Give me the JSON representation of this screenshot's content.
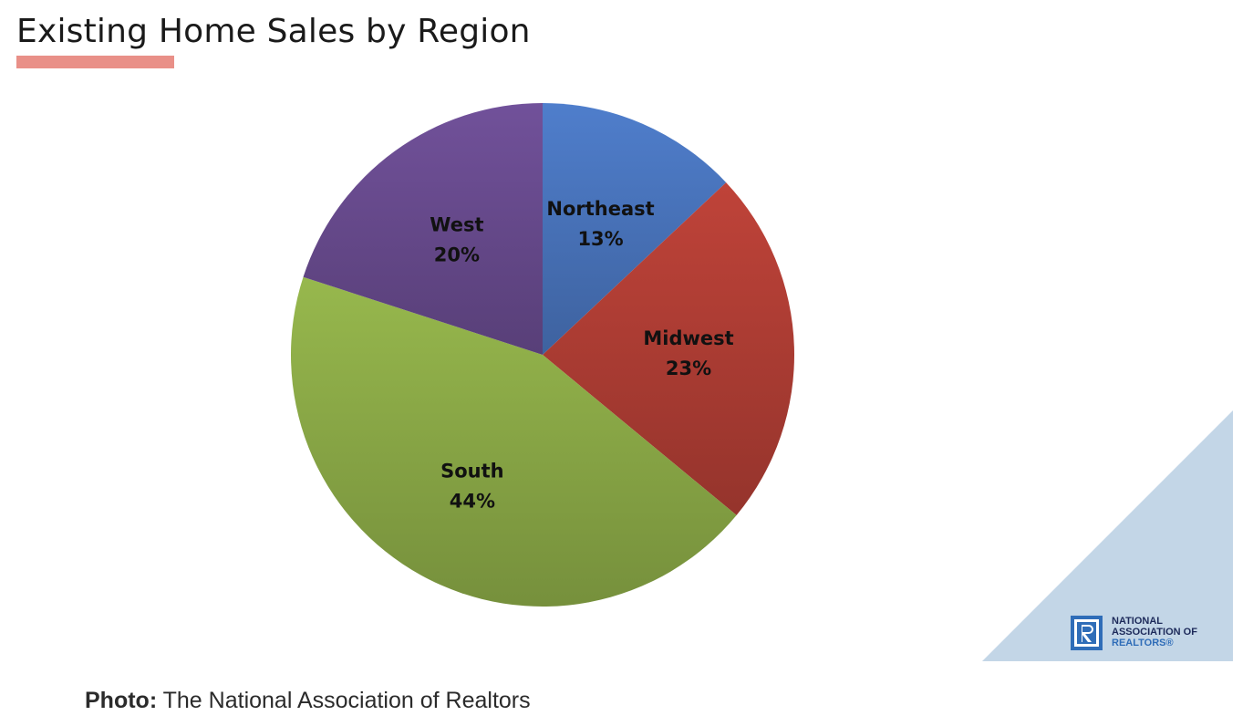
{
  "page": {
    "title": "Existing Home Sales by Region",
    "caption_lead": "Photo:",
    "caption_text": " The National Association of Realtors",
    "logo": {
      "line1": "NATIONAL",
      "line2": "ASSOCIATION OF",
      "line3": "REALTORS®",
      "icon": "realtor-r-icon"
    },
    "colors": {
      "accent_underline": "#e99088",
      "corner_triangle": "#c3d6e7"
    }
  },
  "chart_data": {
    "type": "pie",
    "title": "Existing Home Sales by Region",
    "legend": "none",
    "slices": [
      {
        "name": "Northeast",
        "value": 13,
        "label": "13%",
        "color": "#4f7ecc"
      },
      {
        "name": "Midwest",
        "value": 23,
        "label": "23%",
        "color": "#bf4339"
      },
      {
        "name": "South",
        "value": 44,
        "label": "44%",
        "color": "#97b84d"
      },
      {
        "name": "West",
        "value": 20,
        "label": "20%",
        "color": "#71519a"
      }
    ]
  }
}
